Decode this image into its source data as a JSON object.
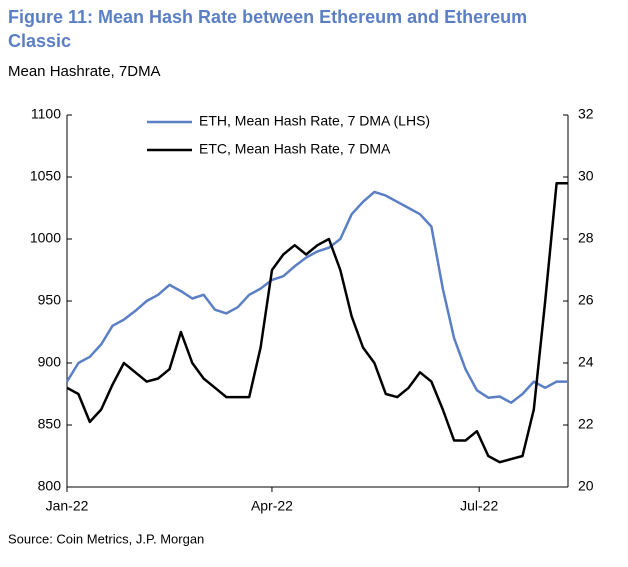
{
  "chart_data": {
    "type": "line",
    "title": "Figure 11: Mean Hash Rate between Ethereum and Ethereum Classic",
    "subtitle": "Mean Hashrate, 7DMA",
    "source": "Source: Coin Metrics, J.P. Morgan",
    "x": [
      0,
      5,
      10,
      15,
      20,
      25,
      30,
      35,
      40,
      45,
      50,
      55,
      60,
      65,
      70,
      75,
      80,
      85,
      90,
      95,
      100,
      105,
      110,
      115,
      120,
      125,
      130,
      135,
      140,
      145,
      150,
      155,
      160,
      165,
      170,
      175,
      180,
      185,
      190,
      195,
      200,
      205,
      210,
      215,
      220
    ],
    "xlim": [
      0,
      220
    ],
    "xticks": [
      {
        "value": 0,
        "label": "Jan-22"
      },
      {
        "value": 90,
        "label": "Apr-22"
      },
      {
        "value": 181,
        "label": "Jul-22"
      }
    ],
    "ylim": [
      800,
      1100
    ],
    "yticks": [
      800,
      850,
      900,
      950,
      1000,
      1050,
      1100
    ],
    "y2lim": [
      20,
      32
    ],
    "y2ticks": [
      20,
      22,
      24,
      26,
      28,
      30,
      32
    ],
    "legend": "top",
    "series": [
      {
        "name": "ETH, Mean Hash Rate, 7 DMA (LHS)",
        "color": "#5b7fc4",
        "values": [
          885,
          900,
          905,
          915,
          930,
          935,
          942,
          950,
          955,
          963,
          958,
          952,
          955,
          943,
          940,
          945,
          955,
          960,
          967,
          970,
          978,
          985,
          990,
          993,
          1000,
          1020,
          1030,
          1038,
          1035,
          1030,
          1025,
          1020,
          1010,
          960,
          920,
          895,
          878,
          872,
          873,
          868,
          875,
          885,
          880,
          885,
          885
        ]
      },
      {
        "name": "ETC, Mean Hash Rate, 7 DMA",
        "color": "#000000",
        "axis": "y2",
        "values": [
          23.2,
          23.0,
          22.1,
          22.5,
          23.3,
          24.0,
          23.7,
          23.4,
          23.5,
          23.8,
          25.0,
          24.0,
          23.5,
          23.2,
          22.9,
          22.9,
          22.9,
          24.5,
          27.0,
          27.5,
          27.8,
          27.5,
          27.8,
          28.0,
          27.0,
          25.5,
          24.5,
          24.0,
          23.0,
          22.9,
          23.2,
          23.7,
          23.4,
          22.5,
          21.5,
          21.5,
          21.8,
          21.0,
          20.8,
          20.9,
          21.0,
          22.5,
          26.0,
          29.8,
          29.8
        ]
      }
    ]
  }
}
